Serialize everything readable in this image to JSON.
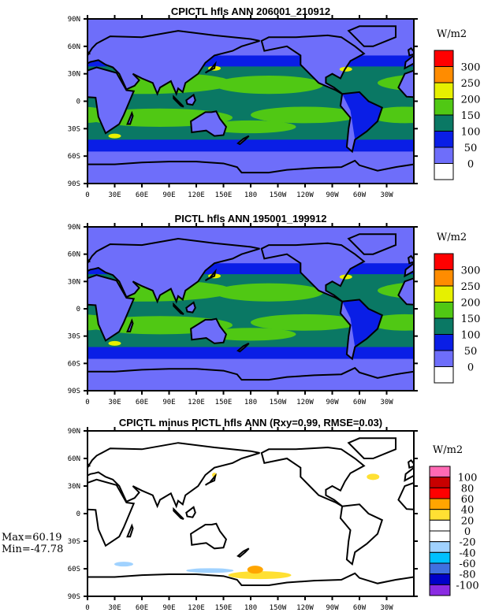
{
  "chart_data": [
    {
      "type": "heatmap",
      "title": "CPICTL hfls ANN 206001_210912",
      "units": "W/m2",
      "x_ticks": [
        "0",
        "30E",
        "60E",
        "90E",
        "120E",
        "150E",
        "180",
        "150W",
        "120W",
        "90W",
        "60W",
        "30W"
      ],
      "y_ticks": [
        "90N",
        "60N",
        "30N",
        "0",
        "30S",
        "60S",
        "90S"
      ],
      "levels": [
        "300",
        "250",
        "200",
        "150",
        "100",
        "50",
        "0"
      ],
      "colors": [
        "#ff0000",
        "#ff8c00",
        "#e6f000",
        "#50c814",
        "#0a7864",
        "#0a1ee6",
        "#6e6efa",
        "#ffffff"
      ]
    },
    {
      "type": "heatmap",
      "title": "PICTL hfls ANN 195001_199912",
      "units": "W/m2",
      "x_ticks": [
        "0",
        "30E",
        "60E",
        "90E",
        "120E",
        "150E",
        "180",
        "150W",
        "120W",
        "90W",
        "60W",
        "30W"
      ],
      "y_ticks": [
        "90N",
        "60N",
        "30N",
        "0",
        "30S",
        "60S",
        "90S"
      ],
      "levels": [
        "300",
        "250",
        "200",
        "150",
        "100",
        "50",
        "0"
      ],
      "colors": [
        "#ff0000",
        "#ff8c00",
        "#e6f000",
        "#50c814",
        "#0a7864",
        "#0a1ee6",
        "#6e6efa",
        "#ffffff"
      ]
    },
    {
      "type": "heatmap",
      "title": "CPICTL minus PICTL hfls ANN (Rxy=0.99, RMSE=0.03)",
      "units": "W/m2",
      "x_ticks": [
        "0",
        "30E",
        "60E",
        "90E",
        "120E",
        "150E",
        "180",
        "150W",
        "120W",
        "90W",
        "60W",
        "30W"
      ],
      "y_ticks": [
        "90N",
        "60N",
        "30N",
        "0",
        "30S",
        "60S",
        "90S"
      ],
      "levels": [
        "100",
        "80",
        "60",
        "40",
        "20",
        "0",
        "-20",
        "-40",
        "-60",
        "-80",
        "-100"
      ],
      "colors": [
        "#ff69b4",
        "#c80000",
        "#ff0000",
        "#ffa500",
        "#ffe033",
        "#ffffff",
        "#ffffff",
        "#a0d2ff",
        "#00c0ff",
        "#4070e0",
        "#0000c8",
        "#8a2be2"
      ],
      "max_label": "Max=60.19",
      "min_label": "Min=-47.78"
    }
  ]
}
